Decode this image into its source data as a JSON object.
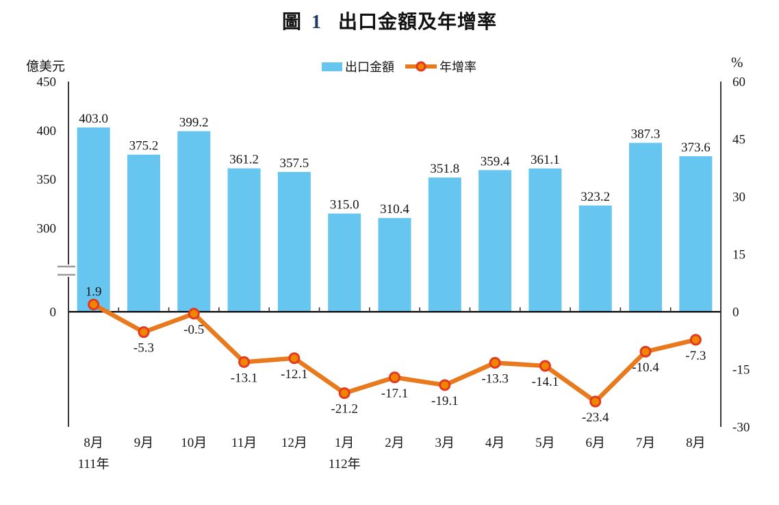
{
  "figure": {
    "title": {
      "prefix": "圖",
      "number": "1",
      "number_color": "#1F3864",
      "text": "出口金額及年增率"
    },
    "legend": {
      "bar_label": "出口金額",
      "line_label": "年增率"
    }
  },
  "chart_data": {
    "type": "bar",
    "subtype": "combo-bar-line",
    "title": "圖 1 出口金額及年增率",
    "categories": [
      "8月",
      "9月",
      "10月",
      "11月",
      "12月",
      "1月",
      "2月",
      "3月",
      "4月",
      "5月",
      "6月",
      "7月",
      "8月"
    ],
    "category_year_labels": [
      {
        "index": 0,
        "label": "111年"
      },
      {
        "index": 5,
        "label": "112年"
      }
    ],
    "series": [
      {
        "name": "出口金額",
        "type": "bar",
        "axis": "left",
        "color": "#66C6F0",
        "values": [
          403.0,
          375.2,
          399.2,
          361.2,
          357.5,
          315.0,
          310.4,
          351.8,
          359.4,
          361.1,
          323.2,
          387.3,
          373.6
        ]
      },
      {
        "name": "年增率",
        "type": "line",
        "axis": "right",
        "color": "#E8791D",
        "marker_fill": "#F28500",
        "marker_stroke": "#E23A22",
        "values": [
          1.9,
          -5.3,
          -0.5,
          -13.1,
          -12.1,
          -21.2,
          -17.1,
          -19.1,
          -13.3,
          -14.1,
          -23.4,
          -10.4,
          -7.3
        ],
        "label_positions": [
          "above",
          "below",
          "below",
          "below",
          "below",
          "below",
          "below",
          "below",
          "below",
          "below",
          "below",
          "below",
          "below"
        ]
      }
    ],
    "left_axis": {
      "unit": "億美元",
      "ticks": [
        450,
        400,
        350,
        300,
        0
      ],
      "broken": true,
      "break_between": [
        0,
        300
      ],
      "range_shown": [
        300,
        450
      ]
    },
    "right_axis": {
      "unit": "%",
      "ticks": [
        60,
        45,
        30,
        15,
        0,
        -15,
        -30
      ],
      "range": [
        -30,
        60
      ]
    },
    "grid": false,
    "legend_position": "top",
    "value_label_decimals": 1
  }
}
